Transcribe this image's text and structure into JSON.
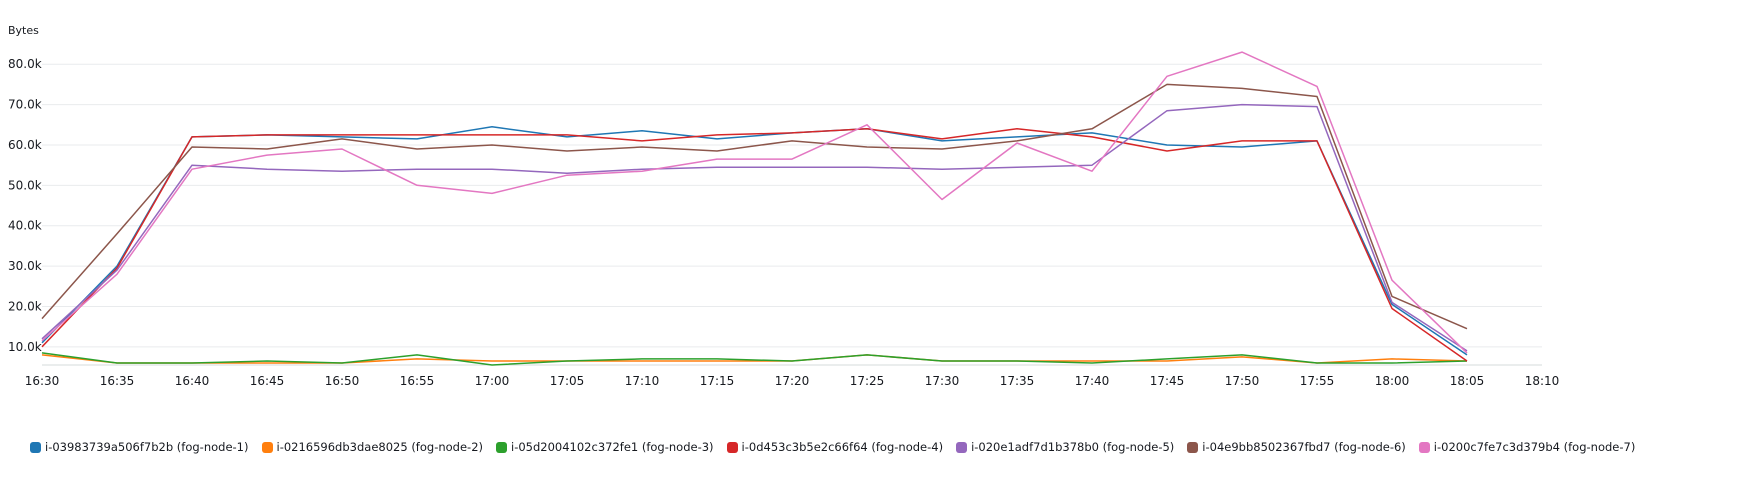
{
  "chart_data": {
    "type": "line",
    "ylabel": "Bytes",
    "xlabel": "",
    "title": "",
    "grid": true,
    "legend_position": "bottom",
    "x": [
      "16:30",
      "16:35",
      "16:40",
      "16:45",
      "16:50",
      "16:55",
      "17:00",
      "17:05",
      "17:10",
      "17:15",
      "17:20",
      "17:25",
      "17:30",
      "17:35",
      "17:40",
      "17:45",
      "17:50",
      "17:55",
      "18:00",
      "18:05"
    ],
    "x_ticks": [
      "16:30",
      "16:35",
      "16:40",
      "16:45",
      "16:50",
      "16:55",
      "17:00",
      "17:05",
      "17:10",
      "17:15",
      "17:20",
      "17:25",
      "17:30",
      "17:35",
      "17:40",
      "17:45",
      "17:50",
      "17:55",
      "18:00",
      "18:05",
      "18:10"
    ],
    "y_ticks": [
      10000,
      20000,
      30000,
      40000,
      50000,
      60000,
      70000,
      80000
    ],
    "y_tick_labels": [
      "10.0k",
      "20.0k",
      "30.0k",
      "40.0k",
      "50.0k",
      "60.0k",
      "70.0k",
      "80.0k"
    ],
    "ylim": [
      5500,
      86000
    ],
    "series": [
      {
        "name": "i-03983739a506f7b2b (fog-node-1)",
        "color": "#1f77b4",
        "values": [
          11000,
          30000,
          62000,
          62500,
          62000,
          61500,
          64500,
          62000,
          63500,
          61500,
          63000,
          64000,
          61000,
          62000,
          63000,
          60000,
          59500,
          61000,
          20500,
          8000
        ]
      },
      {
        "name": "i-0216596db3dae8025 (fog-node-2)",
        "color": "#ff7f0e",
        "values": [
          8000,
          6000,
          6000,
          6000,
          6000,
          7000,
          6500,
          6500,
          6500,
          6500,
          6500,
          8000,
          6500,
          6500,
          6500,
          6500,
          7500,
          6000,
          7000,
          6500
        ]
      },
      {
        "name": "i-05d2004102c372fe1 (fog-node-3)",
        "color": "#2ca02c",
        "values": [
          8500,
          6000,
          6000,
          6500,
          6000,
          8000,
          5500,
          6500,
          7000,
          7000,
          6500,
          8000,
          6500,
          6500,
          6000,
          7000,
          8000,
          6000,
          6000,
          6500
        ]
      },
      {
        "name": "i-0d453c3b5e2c66f64 (fog-node-4)",
        "color": "#d62728",
        "values": [
          10000,
          29500,
          62000,
          62500,
          62500,
          62500,
          62500,
          62500,
          61000,
          62500,
          63000,
          64000,
          61500,
          64000,
          62000,
          58500,
          61000,
          61000,
          19500,
          6500
        ]
      },
      {
        "name": "i-020e1adf7d1b378b0 (fog-node-5)",
        "color": "#9467bd",
        "values": [
          12000,
          29000,
          55000,
          54000,
          53500,
          54000,
          54000,
          53000,
          54000,
          54500,
          54500,
          54500,
          54000,
          54500,
          55000,
          68500,
          70000,
          69500,
          21000,
          9000
        ]
      },
      {
        "name": "i-04e9bb8502367fbd7 (fog-node-6)",
        "color": "#8c564b",
        "values": [
          17000,
          38000,
          59500,
          59000,
          61500,
          59000,
          60000,
          58500,
          59500,
          58500,
          61000,
          59500,
          59000,
          61000,
          64000,
          75000,
          74000,
          72000,
          22500,
          14500
        ]
      },
      {
        "name": "i-0200c7fe7c3d379b4 (fog-node-7)",
        "color": "#e377c2",
        "values": [
          11500,
          28000,
          54000,
          57500,
          59000,
          50000,
          48000,
          52500,
          53500,
          56500,
          56500,
          65000,
          46500,
          60500,
          53500,
          77000,
          83000,
          74500,
          26500,
          8500
        ]
      }
    ]
  }
}
